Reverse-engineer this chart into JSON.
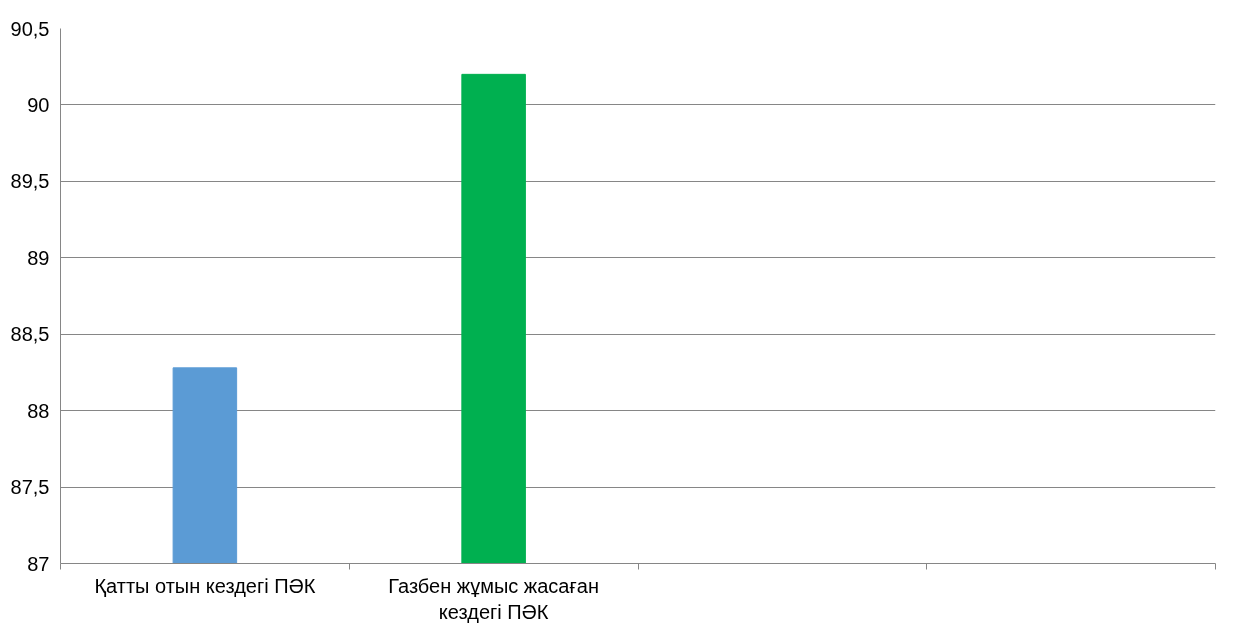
{
  "chart_data": {
    "type": "bar",
    "categories": [
      "Қатты отын кездегі ПӘК",
      "Газбен жұмыс жасаған кездегі ПӘК",
      null,
      null
    ],
    "values": [
      88.28,
      90.2,
      null,
      null
    ],
    "colors": [
      "#5b9bd5",
      "#00b050",
      null,
      null
    ],
    "ylim": [
      87,
      90.5
    ],
    "yticks": [
      87,
      {
        "value": 87.5,
        "label": "87,5"
      },
      88,
      {
        "value": 88.5,
        "label": "88,5"
      },
      89,
      {
        "value": 89.5,
        "label": "89,5"
      },
      90,
      {
        "value": 90.5,
        "label": "90,5"
      }
    ],
    "grid": "y"
  }
}
